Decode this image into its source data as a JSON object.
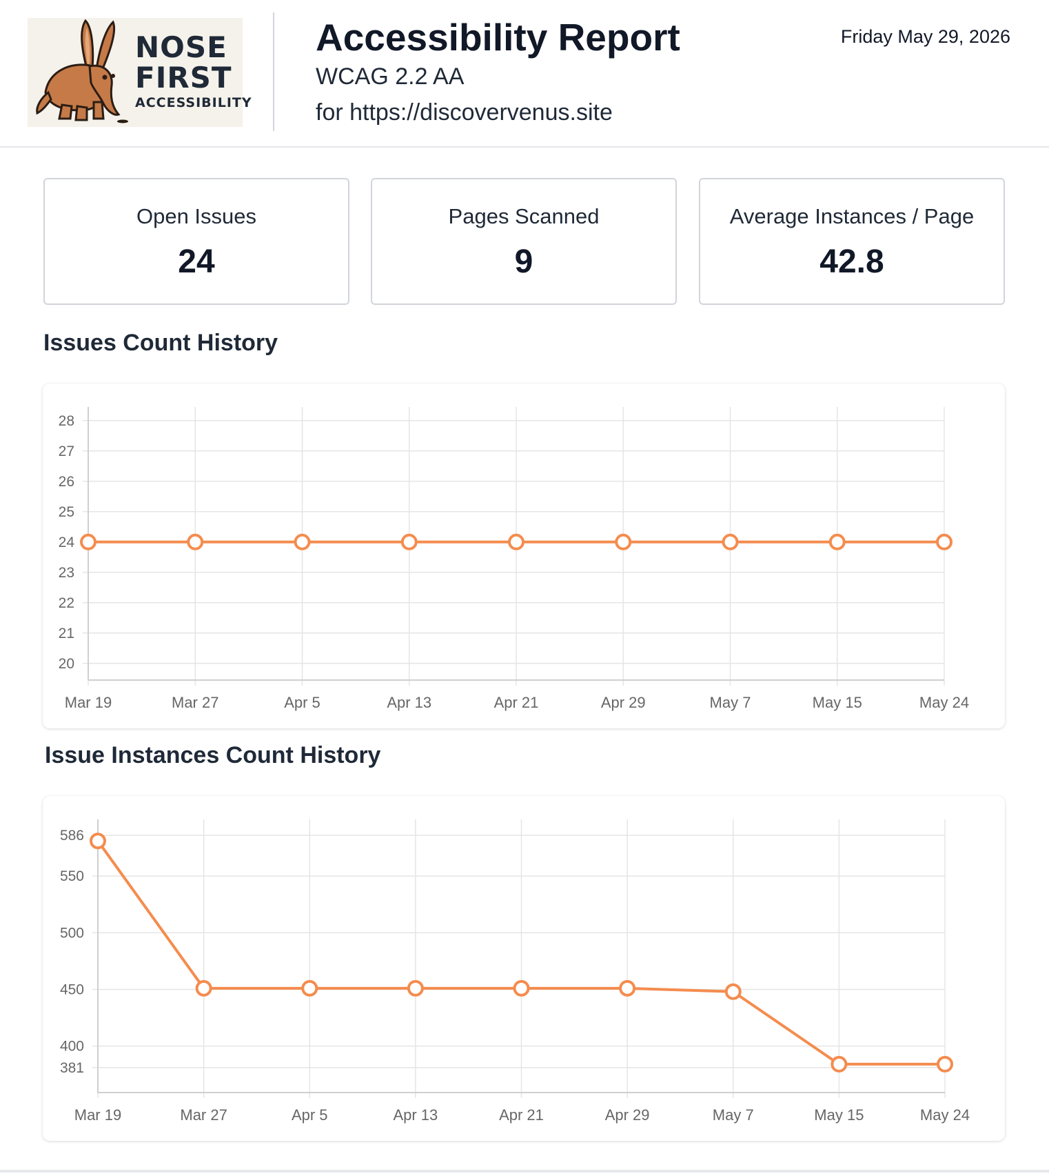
{
  "header": {
    "logo": {
      "line1": "NOSE",
      "line2": "FIRST",
      "line3": "ACCESSIBILITY",
      "icon": "aardvark-mascot-icon"
    },
    "title": "Accessibility Report",
    "standard": "WCAG 2.2 AA",
    "site": "for https://discovervenus.site",
    "date": "Friday May 29, 2026"
  },
  "stats": [
    {
      "label": "Open Issues",
      "value": "24"
    },
    {
      "label": "Pages Scanned",
      "value": "9"
    },
    {
      "label": "Average Instances / Page",
      "value": "42.8"
    }
  ],
  "colors": {
    "accent": "#f48c4e",
    "grid": "#e5e5e5",
    "axis_text": "#666666"
  },
  "chart_data": [
    {
      "type": "line",
      "title": "Issues Count History",
      "categories": [
        "Mar 19",
        "Mar 27",
        "Apr 5",
        "Apr 13",
        "Apr 21",
        "Apr 29",
        "May 7",
        "May 15",
        "May 24"
      ],
      "values": [
        24,
        24,
        24,
        24,
        24,
        24,
        24,
        24,
        24
      ],
      "yticks": [
        20,
        21,
        22,
        23,
        24,
        25,
        26,
        27,
        28
      ],
      "ylim": [
        19.45,
        28.45
      ],
      "grid": true,
      "legend": "none"
    },
    {
      "type": "line",
      "title": "Issue Instances Count History",
      "categories": [
        "Mar 19",
        "Mar 27",
        "Apr 5",
        "Apr 13",
        "Apr 21",
        "Apr 29",
        "May 7",
        "May 15",
        "May 24"
      ],
      "values": [
        581,
        451,
        451,
        451,
        451,
        451,
        448,
        384,
        384
      ],
      "yticks": [
        381,
        400,
        450,
        500,
        550,
        586
      ],
      "ylim": [
        359,
        600
      ],
      "grid": true,
      "legend": "none"
    }
  ]
}
